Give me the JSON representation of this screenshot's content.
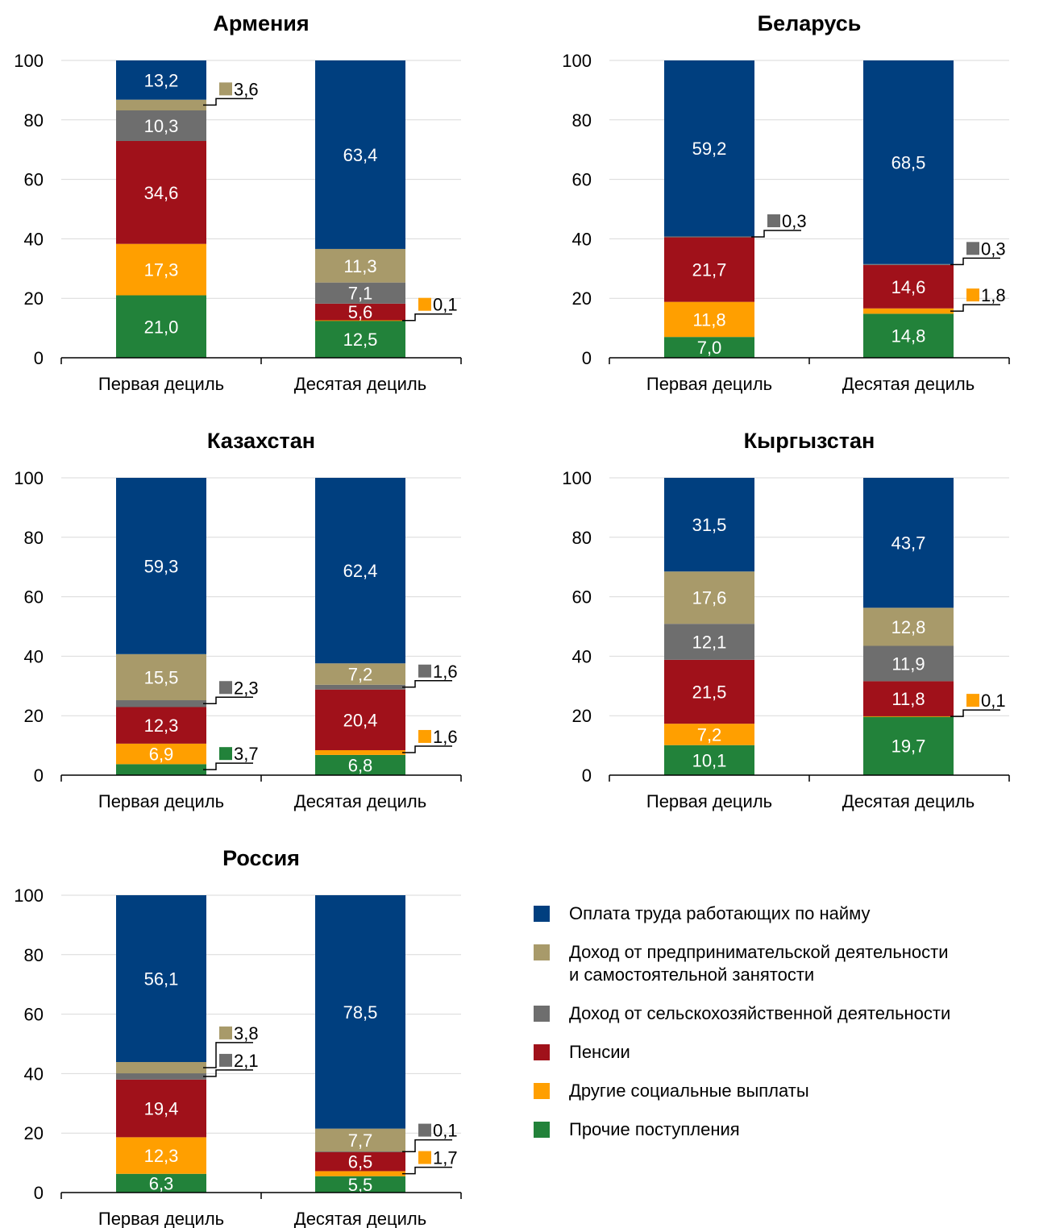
{
  "colors": {
    "wages": "#003F7F",
    "business": "#A89A6A",
    "agri": "#6E6E6E",
    "pensions": "#A0111A",
    "social": "#FF9F00",
    "other": "#22823A"
  },
  "legend": [
    {
      "key": "wages",
      "label": "Оплата труда работающих по найму"
    },
    {
      "key": "business",
      "label": "Доход от предпринимательской деятельности\nи самостоятельной занятости"
    },
    {
      "key": "agri",
      "label": "Доход от сельскохозяйственной деятельности"
    },
    {
      "key": "pensions",
      "label": "Пенсии"
    },
    {
      "key": "social",
      "label": "Другие социальные выплаты"
    },
    {
      "key": "other",
      "label": "Прочие поступления"
    }
  ],
  "chart_data": [
    {
      "type": "bar",
      "stacked": true,
      "title": "Армения",
      "categories": [
        "Первая дециль",
        "Десятая дециль"
      ],
      "ylim": [
        0,
        100
      ],
      "yticks": [
        0,
        20,
        40,
        60,
        80,
        100
      ],
      "series": [
        {
          "key": "other",
          "name": "Прочие поступления",
          "values": [
            21.0,
            12.5
          ],
          "labels": [
            "21,0",
            "12,5"
          ]
        },
        {
          "key": "social",
          "name": "Другие социальные выплаты",
          "values": [
            17.3,
            0.1
          ],
          "labels": [
            "17,3",
            "0,1"
          ]
        },
        {
          "key": "pensions",
          "name": "Пенсии",
          "values": [
            34.6,
            5.6
          ],
          "labels": [
            "34,6",
            "5,6"
          ]
        },
        {
          "key": "agri",
          "name": "Доход от сельскохозяйственной деятельности",
          "values": [
            10.3,
            7.1
          ],
          "labels": [
            "10,3",
            "7,1"
          ]
        },
        {
          "key": "business",
          "name": "Доход от предпринимательской деятельности и самостоятельной занятости",
          "values": [
            3.6,
            11.3
          ],
          "labels": [
            "3,6",
            "11,3"
          ]
        },
        {
          "key": "wages",
          "name": "Оплата труда работающих по найму",
          "values": [
            13.2,
            63.4
          ],
          "labels": [
            "13,2",
            "63,4"
          ]
        }
      ]
    },
    {
      "type": "bar",
      "stacked": true,
      "title": "Беларусь",
      "categories": [
        "Первая дециль",
        "Десятая дециль"
      ],
      "ylim": [
        0,
        100
      ],
      "yticks": [
        0,
        20,
        40,
        60,
        80,
        100
      ],
      "series": [
        {
          "key": "other",
          "name": "Прочие поступления",
          "values": [
            7.0,
            14.8
          ],
          "labels": [
            "7,0",
            "14,8"
          ]
        },
        {
          "key": "social",
          "name": "Другие социальные выплаты",
          "values": [
            11.8,
            1.8
          ],
          "labels": [
            "11,8",
            "1,8"
          ]
        },
        {
          "key": "pensions",
          "name": "Пенсии",
          "values": [
            21.7,
            14.6
          ],
          "labels": [
            "21,7",
            "14,6"
          ]
        },
        {
          "key": "agri",
          "name": "Доход от сельскохозяйственной деятельности",
          "values": [
            0.3,
            0.3
          ],
          "labels": [
            "0,3",
            "0,3"
          ]
        },
        {
          "key": "wages",
          "name": "Оплата труда работающих по найму",
          "values": [
            59.2,
            68.5
          ],
          "labels": [
            "59,2",
            "68,5"
          ]
        }
      ]
    },
    {
      "type": "bar",
      "stacked": true,
      "title": "Казахстан",
      "categories": [
        "Первая дециль",
        "Десятая дециль"
      ],
      "ylim": [
        0,
        100
      ],
      "yticks": [
        0,
        20,
        40,
        60,
        80,
        100
      ],
      "series": [
        {
          "key": "other",
          "name": "Прочие поступления",
          "values": [
            3.7,
            6.8
          ],
          "labels": [
            "3,7",
            "6,8"
          ]
        },
        {
          "key": "social",
          "name": "Другие социальные выплаты",
          "values": [
            6.9,
            1.6
          ],
          "labels": [
            "6,9",
            "1,6"
          ]
        },
        {
          "key": "pensions",
          "name": "Пенсии",
          "values": [
            12.3,
            20.4
          ],
          "labels": [
            "12,3",
            "20,4"
          ]
        },
        {
          "key": "agri",
          "name": "Доход от сельскохозяйственной деятельности",
          "values": [
            2.3,
            1.6
          ],
          "labels": [
            "2,3",
            "1,6"
          ]
        },
        {
          "key": "business",
          "name": "Доход от предпринимательской деятельности и самостоятельной занятости",
          "values": [
            15.5,
            7.2
          ],
          "labels": [
            "15,5",
            "7,2"
          ]
        },
        {
          "key": "wages",
          "name": "Оплата труда работающих по найму",
          "values": [
            59.3,
            62.4
          ],
          "labels": [
            "59,3",
            "62,4"
          ]
        }
      ]
    },
    {
      "type": "bar",
      "stacked": true,
      "title": "Кыргызстан",
      "categories": [
        "Первая дециль",
        "Десятая дециль"
      ],
      "ylim": [
        0,
        100
      ],
      "yticks": [
        0,
        20,
        40,
        60,
        80,
        100
      ],
      "series": [
        {
          "key": "other",
          "name": "Прочие поступления",
          "values": [
            10.1,
            19.7
          ],
          "labels": [
            "10,1",
            "19,7"
          ]
        },
        {
          "key": "social",
          "name": "Другие социальные выплаты",
          "values": [
            7.2,
            0.1
          ],
          "labels": [
            "7,2",
            "0,1"
          ]
        },
        {
          "key": "pensions",
          "name": "Пенсии",
          "values": [
            21.5,
            11.8
          ],
          "labels": [
            "21,5",
            "11,8"
          ]
        },
        {
          "key": "agri",
          "name": "Доход от сельскохозяйственной деятельности",
          "values": [
            12.1,
            11.9
          ],
          "labels": [
            "12,1",
            "11,9"
          ]
        },
        {
          "key": "business",
          "name": "Доход от предпринимательской деятельности и самостоятельной занятости",
          "values": [
            17.6,
            12.8
          ],
          "labels": [
            "17,6",
            "12,8"
          ]
        },
        {
          "key": "wages",
          "name": "Оплата труда работающих по найму",
          "values": [
            31.5,
            43.7
          ],
          "labels": [
            "31,5",
            "43,7"
          ]
        }
      ]
    },
    {
      "type": "bar",
      "stacked": true,
      "title": "Россия",
      "categories": [
        "Первая дециль",
        "Десятая дециль"
      ],
      "ylim": [
        0,
        100
      ],
      "yticks": [
        0,
        20,
        40,
        60,
        80,
        100
      ],
      "series": [
        {
          "key": "other",
          "name": "Прочие поступления",
          "values": [
            6.3,
            5.5
          ],
          "labels": [
            "6,3",
            "5,5"
          ]
        },
        {
          "key": "social",
          "name": "Другие социальные выплаты",
          "values": [
            12.3,
            1.7
          ],
          "labels": [
            "12,3",
            "1,7"
          ]
        },
        {
          "key": "pensions",
          "name": "Пенсии",
          "values": [
            19.4,
            6.5
          ],
          "labels": [
            "19,4",
            "6,5"
          ]
        },
        {
          "key": "agri",
          "name": "Доход от сельскохозяйственной деятельности",
          "values": [
            2.1,
            0.1
          ],
          "labels": [
            "2,1",
            "0,1"
          ]
        },
        {
          "key": "business",
          "name": "Доход от предпринимательской деятельности и самостоятельной занятости",
          "values": [
            3.8,
            7.7
          ],
          "labels": [
            "3,8",
            "7,7"
          ]
        },
        {
          "key": "wages",
          "name": "Оплата труда работающих по найму",
          "values": [
            56.1,
            78.5
          ],
          "labels": [
            "56,1",
            "78,5"
          ]
        }
      ]
    }
  ]
}
